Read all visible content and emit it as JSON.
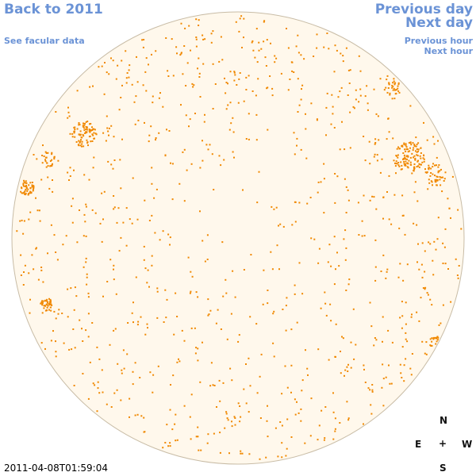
{
  "nav": {
    "back_label": "Back to 2011",
    "facular_label": "See facular data",
    "prev_day_label": "Previous day",
    "next_day_label": "Next day",
    "prev_hour_label": "Previous hour",
    "next_hour_label": "Next hour"
  },
  "compass": {
    "north": "N",
    "east": "E",
    "center": "+",
    "west": "W",
    "south": "S"
  },
  "timestamp": "2011-04-08T01:59:04",
  "colors": {
    "link": "#6b93d6",
    "disk_fill": "#fff8ec",
    "disk_stroke": "#c8bca6",
    "network_spots": "#f08800"
  },
  "icons": {
    "disk": "solar-disk-icon"
  }
}
